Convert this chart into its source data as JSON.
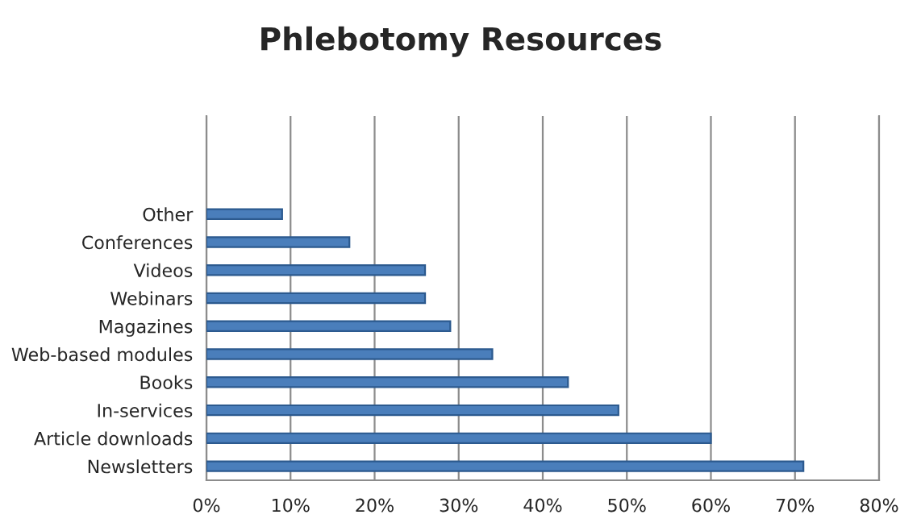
{
  "chart_data": {
    "type": "bar",
    "orientation": "horizontal",
    "title": "Phlebotomy Resources",
    "categories": [
      null,
      null,
      null,
      "Other",
      "Conferences",
      "Videos",
      "Webinars",
      "Magazines",
      "Web-based modules",
      "Books",
      "In-services",
      "Article downloads",
      "Newsletters"
    ],
    "values": [
      null,
      null,
      null,
      9,
      17,
      26,
      26,
      29,
      34,
      43,
      49,
      60,
      71
    ],
    "color": "#4a7ebb",
    "xlim": [
      0,
      80
    ],
    "xticks": [
      {
        "value": 0,
        "label": "0%"
      },
      {
        "value": 10,
        "label": "10%"
      },
      {
        "value": 20,
        "label": "20%"
      },
      {
        "value": 30,
        "label": "30%"
      },
      {
        "value": 40,
        "label": "40%"
      },
      {
        "value": 50,
        "label": "50%"
      },
      {
        "value": 60,
        "label": "60%"
      },
      {
        "value": 70,
        "label": "70%"
      },
      {
        "value": 80,
        "label": "80%"
      }
    ],
    "grid": "x",
    "legend": false
  }
}
